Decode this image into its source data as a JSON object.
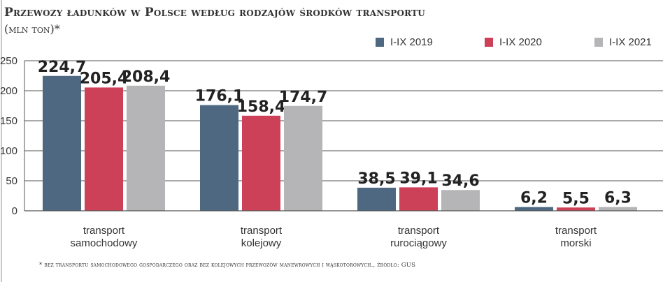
{
  "chart_data": {
    "type": "bar",
    "title": "Przewozy ładunków w Polsce według rodzajów środków transportu",
    "subtitle": "(mln ton)*",
    "categories": [
      [
        "transport",
        "samochodowy"
      ],
      [
        "transport",
        "kolejowy"
      ],
      [
        "transport",
        "rurociągowy"
      ],
      [
        "transport",
        "morski"
      ]
    ],
    "series": [
      {
        "name": "I-IX 2019",
        "color": "#4d6880",
        "values": [
          224.7,
          176.1,
          38.5,
          6.2
        ],
        "labels": [
          "224,7",
          "176,1",
          "38,5",
          "6,2"
        ]
      },
      {
        "name": "I-IX 2020",
        "color": "#cc4058",
        "values": [
          205.4,
          158.4,
          39.1,
          5.5
        ],
        "labels": [
          "205,4",
          "158,4",
          "39,1",
          "5,5"
        ]
      },
      {
        "name": "I-IX 2021",
        "color": "#b5b4b6",
        "values": [
          208.4,
          174.7,
          34.6,
          6.3
        ],
        "labels": [
          "208,4",
          "174,7",
          "34,6",
          "6,3"
        ]
      }
    ],
    "ylim": [
      0,
      250
    ],
    "yticks": [
      0,
      50,
      100,
      150,
      200,
      250
    ],
    "grid": true,
    "legend": "top-right",
    "footnote": "* bez transportu samochodowego gospodarczego oraz bez kolejowych przewozów manewrowych i wąskotorowych., źródło: GUS"
  }
}
